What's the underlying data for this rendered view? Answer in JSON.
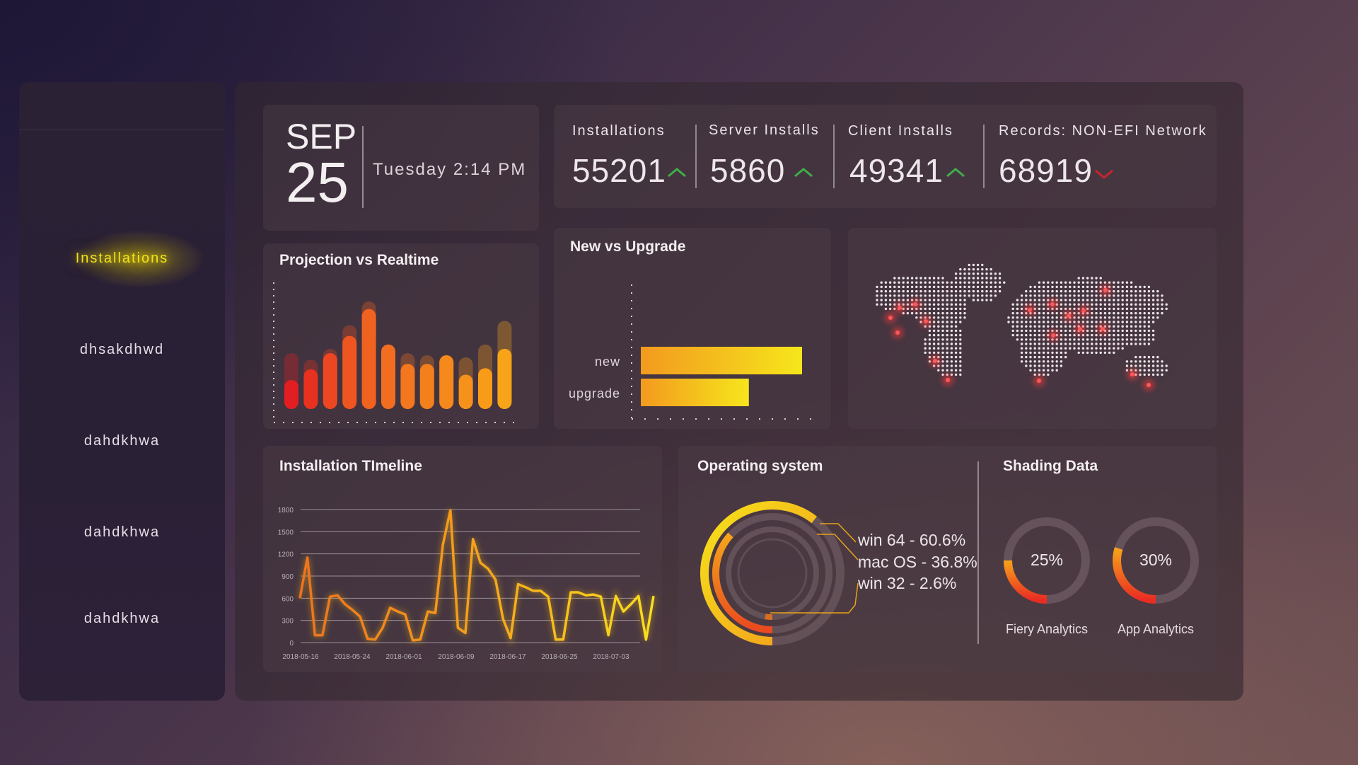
{
  "sidebar": {
    "items": [
      {
        "label": "Installations",
        "active": true
      },
      {
        "label": "dhsakdhwd"
      },
      {
        "label": "dahdkhwa"
      },
      {
        "label": "dahdkhwa"
      },
      {
        "label": "dahdkhwa"
      }
    ]
  },
  "date": {
    "month": "SEP",
    "day": "25",
    "time": "Tuesday 2:14 PM"
  },
  "kpis": [
    {
      "label": "Installations",
      "value": "55201",
      "trend": "up"
    },
    {
      "label": "Server Installs",
      "value": "5860",
      "trend": "up"
    },
    {
      "label": "Client Installs",
      "value": "49341",
      "trend": "up"
    },
    {
      "label": "Records: NON-EFI Network",
      "value": "68919",
      "trend": "down"
    }
  ],
  "colors": {
    "accent_yellow": "#f1e21a",
    "trend_up": "#3fae4a",
    "trend_down": "#c8242e",
    "map_hotspot": "#ff3b3b"
  },
  "charts": {
    "projection": {
      "title": "Projection vs Realtime",
      "chart_data": {
        "type": "bar",
        "series": [
          {
            "values": [
              52,
              46,
              56,
              78,
              100,
              60,
              52,
              50,
              50,
              48,
              60,
              82
            ]
          },
          {
            "values": [
              27,
              37,
              52,
              68,
              93,
              60,
              42,
              42,
              50,
              32,
              38,
              56
            ]
          }
        ],
        "colors": [
          "#e21e23",
          "#e8311f",
          "#ec4622",
          "#ef5521",
          "#f06220",
          "#f26d1f",
          "#f3771e",
          "#f4801d",
          "#f5891c",
          "#f6921a",
          "#f79b19",
          "#f8a418"
        ]
      }
    },
    "new_vs_upgrade": {
      "title": "New vs Upgrade",
      "chart_data": {
        "type": "bar",
        "orientation": "horizontal",
        "categories": [
          "new",
          "upgrade"
        ],
        "values": [
          100,
          67
        ]
      }
    },
    "map": {
      "hotspots": 18
    },
    "timeline": {
      "title": "Installation TImeline",
      "chart_data": {
        "type": "line",
        "x_ticks": [
          "2018-05-16",
          "2018-05-24",
          "2018-06-01",
          "2018-06-09",
          "2018-06-17",
          "2018-06-25",
          "2018-07-03"
        ],
        "y_ticks": [
          "1800",
          "1500",
          "1200",
          "900",
          "600",
          "300",
          "0"
        ],
        "ylim": [
          0,
          1800
        ],
        "values": [
          600,
          1150,
          100,
          100,
          620,
          640,
          520,
          440,
          350,
          50,
          40,
          200,
          470,
          420,
          380,
          30,
          40,
          420,
          400,
          1320,
          1790,
          200,
          130,
          1400,
          1080,
          1000,
          850,
          320,
          60,
          790,
          750,
          700,
          700,
          620,
          40,
          40,
          680,
          680,
          640,
          650,
          620,
          100,
          630,
          420,
          520,
          630,
          40,
          630
        ],
        "grid": true
      }
    },
    "os": {
      "title": "Operating system",
      "chart_data": {
        "type": "pie",
        "variant": "concentric-rings",
        "categories": [
          "win 64",
          "mac OS",
          "win 32"
        ],
        "values": [
          60.6,
          36.8,
          2.6
        ]
      },
      "legend": [
        "win 64 - 60.6%",
        "mac OS - 36.8%",
        "win 32 - 2.6%"
      ]
    },
    "shading": {
      "title": "Shading Data",
      "chart_data": {
        "type": "pie",
        "variant": "donut",
        "categories": [
          "Fiery Analytics",
          "App Analytics"
        ],
        "values": [
          25,
          30
        ]
      },
      "items": [
        {
          "percent": "25%",
          "caption": "Fiery Analytics"
        },
        {
          "percent": "30%",
          "caption": "App Analytics"
        }
      ]
    }
  }
}
